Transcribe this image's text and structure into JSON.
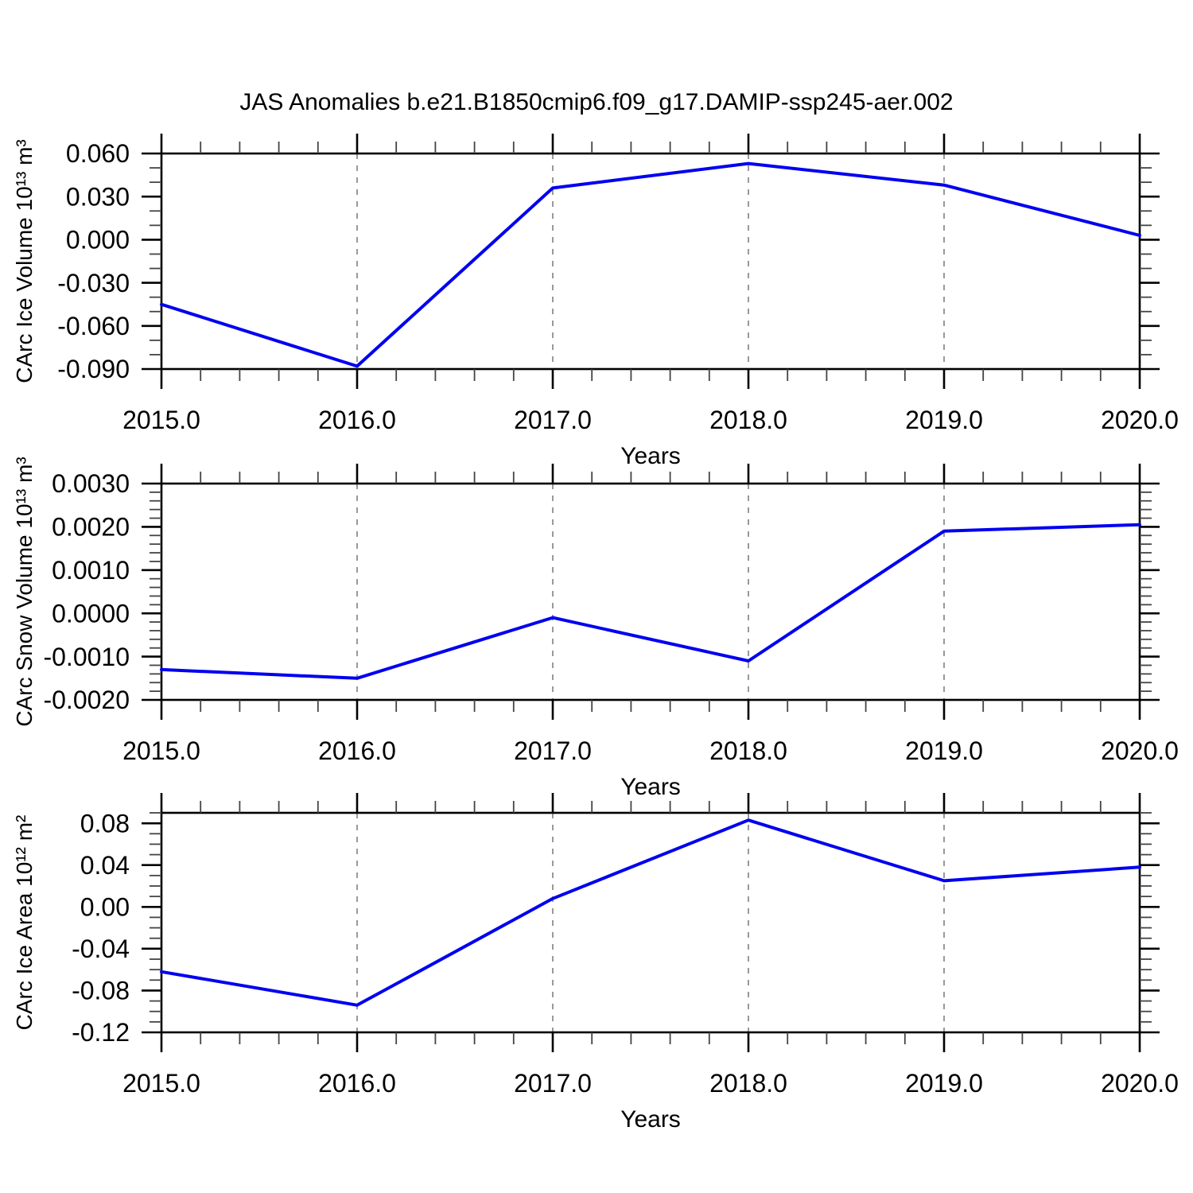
{
  "title": "JAS Anomalies b.e21.B1850cmip6.f09_g17.DAMIP-ssp245-aer.002",
  "colors": {
    "line": "#0000f0",
    "axis": "#000000",
    "minor_tick": "#444444",
    "gridline": "#999999",
    "background": "#ffffff"
  },
  "chart_data": [
    {
      "type": "line",
      "ylabel": "CArc Ice Volume 10¹³ m³",
      "xlabel": "Years",
      "x": [
        2015.0,
        2016.0,
        2017.0,
        2018.0,
        2019.0,
        2020.0
      ],
      "values": [
        -0.045,
        -0.088,
        0.036,
        0.053,
        0.038,
        0.003
      ],
      "xlim": [
        2015.0,
        2020.0
      ],
      "ylim": [
        -0.09,
        0.06
      ],
      "x_tick_values": [
        2015.0,
        2016.0,
        2017.0,
        2018.0,
        2019.0,
        2020.0
      ],
      "x_tick_labels": [
        "2015.0",
        "2016.0",
        "2017.0",
        "2018.0",
        "2019.0",
        "2020.0"
      ],
      "x_minor_step": 0.2,
      "y_tick_values": [
        0.06,
        0.03,
        0.0,
        -0.03,
        -0.06,
        -0.09
      ],
      "y_tick_labels": [
        "0.060",
        "0.030",
        "0.000",
        "-0.030",
        "-0.060",
        "-0.090"
      ],
      "y_minor_step": 0.01,
      "grid_x_dashed": [
        2016.0,
        2017.0,
        2018.0,
        2019.0
      ],
      "grid": "vertical-dashed",
      "legend": "none"
    },
    {
      "type": "line",
      "ylabel": "CArc Snow Volume 10¹³ m³",
      "xlabel": "Years",
      "x": [
        2015.0,
        2016.0,
        2017.0,
        2018.0,
        2019.0,
        2020.0
      ],
      "values": [
        -0.0013,
        -0.0015,
        -0.0001,
        -0.0011,
        0.0019,
        0.00205
      ],
      "xlim": [
        2015.0,
        2020.0
      ],
      "ylim": [
        -0.002,
        0.003
      ],
      "x_tick_values": [
        2015.0,
        2016.0,
        2017.0,
        2018.0,
        2019.0,
        2020.0
      ],
      "x_tick_labels": [
        "2015.0",
        "2016.0",
        "2017.0",
        "2018.0",
        "2019.0",
        "2020.0"
      ],
      "x_minor_step": 0.2,
      "y_tick_values": [
        0.003,
        0.002,
        0.001,
        0.0,
        -0.001,
        -0.002
      ],
      "y_tick_labels": [
        "0.0030",
        "0.0020",
        "0.0010",
        "0.0000",
        "-0.0010",
        "-0.0020"
      ],
      "y_minor_step": 0.0002,
      "grid_x_dashed": [
        2016.0,
        2017.0,
        2018.0,
        2019.0
      ],
      "grid": "vertical-dashed",
      "legend": "none"
    },
    {
      "type": "line",
      "ylabel": "CArc Ice Area 10¹² m²",
      "xlabel": "Years",
      "x": [
        2015.0,
        2016.0,
        2017.0,
        2018.0,
        2019.0,
        2020.0
      ],
      "values": [
        -0.062,
        -0.094,
        0.008,
        0.083,
        0.025,
        0.038
      ],
      "xlim": [
        2015.0,
        2020.0
      ],
      "ylim": [
        -0.12,
        0.09
      ],
      "x_tick_values": [
        2015.0,
        2016.0,
        2017.0,
        2018.0,
        2019.0,
        2020.0
      ],
      "x_tick_labels": [
        "2015.0",
        "2016.0",
        "2017.0",
        "2018.0",
        "2019.0",
        "2020.0"
      ],
      "x_minor_step": 0.2,
      "y_tick_values": [
        0.08,
        0.04,
        0.0,
        -0.04,
        -0.08,
        -0.12
      ],
      "y_tick_labels": [
        "0.08",
        "0.04",
        "0.00",
        "-0.04",
        "-0.08",
        "-0.12"
      ],
      "y_minor_step": 0.01,
      "grid_x_dashed": [
        2016.0,
        2017.0,
        2018.0,
        2019.0
      ],
      "grid": "vertical-dashed",
      "legend": "none"
    }
  ]
}
